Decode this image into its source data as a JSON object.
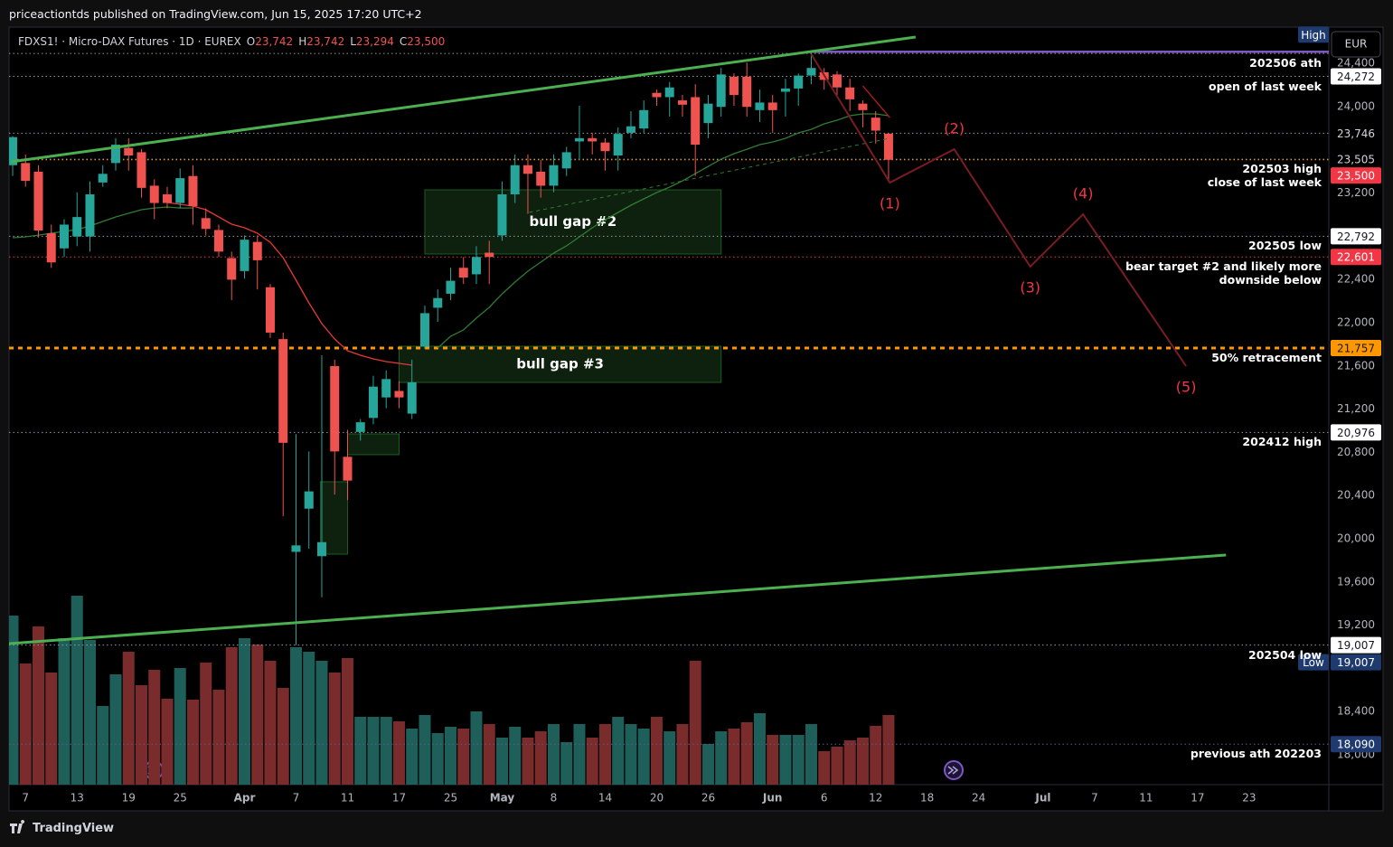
{
  "chart_data": {
    "type": "candlestick",
    "publisher": "priceactiontds published on TradingView.com, Jun 15, 2025 17:20 UTC+2",
    "symbol": "FDXS1! · Micro-DAX Futures · 1D · EUREX",
    "ohlc": [
      {
        "key": "O",
        "value": 23742,
        "label": "23,742"
      },
      {
        "key": "H",
        "value": 23742,
        "label": "23,742"
      },
      {
        "key": "L",
        "value": 23294,
        "label": "23,294"
      },
      {
        "key": "C",
        "value": 23500,
        "label": "23,500"
      }
    ],
    "currency": "EUR",
    "brand": "TradingView",
    "up_color": "#26a69a",
    "down_color": "#ef5350",
    "volume_up_color": "#1e5f5a",
    "volume_down_color": "#7a2b2c",
    "xlim": [
      -0.28,
      102.18
    ],
    "ylim": [
      17715,
      24720
    ],
    "xticks": [
      {
        "value": 1,
        "label": "7"
      },
      {
        "value": 5,
        "label": "13"
      },
      {
        "value": 9,
        "label": "19"
      },
      {
        "value": 13,
        "label": "25"
      },
      {
        "value": 18,
        "label": "Apr"
      },
      {
        "value": 22,
        "label": "7"
      },
      {
        "value": 26,
        "label": "11"
      },
      {
        "value": 30,
        "label": "17"
      },
      {
        "value": 34,
        "label": "25"
      },
      {
        "value": 38,
        "label": "May"
      },
      {
        "value": 42,
        "label": "8"
      },
      {
        "value": 46,
        "label": "14"
      },
      {
        "value": 50,
        "label": "20"
      },
      {
        "value": 54,
        "label": "26"
      },
      {
        "value": 59,
        "label": "Jun"
      },
      {
        "value": 63,
        "label": "6"
      },
      {
        "value": 67,
        "label": "12"
      },
      {
        "value": 71,
        "label": "18"
      },
      {
        "value": 75,
        "label": "24"
      },
      {
        "value": 80,
        "label": "Jul"
      },
      {
        "value": 84,
        "label": "7"
      },
      {
        "value": 88,
        "label": "11"
      },
      {
        "value": 92,
        "label": "17"
      },
      {
        "value": 96,
        "label": "23"
      }
    ],
    "yticks": [
      {
        "value": 24400,
        "label": "24,400"
      },
      {
        "value": 24000,
        "label": "24,000"
      },
      {
        "value": 23200,
        "label": "23,200"
      },
      {
        "value": 22400,
        "label": "22,400"
      },
      {
        "value": 22000,
        "label": "22,000"
      },
      {
        "value": 21600,
        "label": "21,600"
      },
      {
        "value": 21200,
        "label": "21,200"
      },
      {
        "value": 20800,
        "label": "20,800"
      },
      {
        "value": 20400,
        "label": "20,400"
      },
      {
        "value": 20000,
        "label": "20,000"
      },
      {
        "value": 19600,
        "label": "19,600"
      },
      {
        "value": 19200,
        "label": "19,200"
      },
      {
        "value": 18400,
        "label": "18,400"
      },
      {
        "value": 18000,
        "label": "18,000"
      }
    ],
    "open": [
      23450,
      23470,
      23390,
      22820,
      22680,
      22790,
      22790,
      23290,
      23470,
      23610,
      23570,
      23260,
      23180,
      23100,
      23350,
      22960,
      22850,
      22590,
      22470,
      22740,
      22320,
      21840,
      19870,
      20270,
      19830,
      21590,
      20750,
      20980,
      21110,
      21300,
      21360,
      21150,
      21770,
      22130,
      22260,
      22500,
      22440,
      22640,
      22800,
      23180,
      23450,
      23390,
      23260,
      23420,
      23670,
      23700,
      23660,
      23540,
      23750,
      23790,
      24120,
      24080,
      24050,
      24080,
      23840,
      23990,
      24270,
      24270,
      23960,
      24030,
      24130,
      24160,
      24280,
      24310,
      24290,
      24170,
      24020,
      23890,
      23742
    ],
    "high": [
      23720,
      23550,
      23450,
      22900,
      22950,
      23200,
      23300,
      23450,
      23700,
      23700,
      23600,
      23320,
      23250,
      23420,
      23450,
      23050,
      22900,
      22650,
      22800,
      22800,
      22350,
      21900,
      20960,
      20800,
      21690,
      21650,
      21000,
      21100,
      21500,
      21550,
      21450,
      21650,
      22150,
      22300,
      22500,
      22600,
      22700,
      22750,
      23300,
      23550,
      23550,
      23500,
      23550,
      23620,
      24000,
      23750,
      23700,
      23800,
      23950,
      24050,
      24150,
      24220,
      24100,
      24200,
      24100,
      24350,
      24300,
      24400,
      24150,
      24100,
      24250,
      24300,
      24480,
      24350,
      24320,
      24250,
      24050,
      23950,
      23742
    ],
    "low": [
      23350,
      23250,
      22780,
      22500,
      22600,
      22700,
      22650,
      23250,
      23400,
      23400,
      23150,
      22950,
      23050,
      23050,
      22900,
      22800,
      22600,
      22200,
      22400,
      22300,
      21850,
      20200,
      19007,
      19900,
      19450,
      20400,
      20350,
      20900,
      21050,
      21200,
      21200,
      21100,
      21750,
      22000,
      22200,
      22350,
      22350,
      22350,
      22750,
      23100,
      23000,
      23150,
      23200,
      23350,
      23500,
      23550,
      23400,
      23400,
      23700,
      23750,
      24000,
      23900,
      23900,
      23350,
      23700,
      23900,
      24000,
      23900,
      23850,
      23750,
      23900,
      24000,
      24200,
      24150,
      24100,
      23950,
      23800,
      23650,
      23294
    ],
    "close": [
      23710,
      23305,
      22845,
      22550,
      22900,
      22970,
      23180,
      23370,
      23640,
      23540,
      23240,
      23100,
      23100,
      23330,
      23070,
      22860,
      22650,
      22390,
      22760,
      22570,
      21900,
      20880,
      19930,
      20430,
      19960,
      20800,
      20530,
      21070,
      21400,
      21470,
      21300,
      21440,
      22080,
      22220,
      22380,
      22410,
      22600,
      22600,
      23180,
      23450,
      23370,
      23260,
      23450,
      23570,
      23700,
      23670,
      23580,
      23740,
      23810,
      23960,
      24080,
      24170,
      24010,
      23640,
      24020,
      24290,
      24100,
      23990,
      24030,
      23960,
      24160,
      24280,
      24350,
      24240,
      24170,
      24060,
      23960,
      23770,
      23500
    ],
    "volume": [
      187,
      134,
      175,
      124,
      162,
      209,
      160,
      87,
      122,
      147,
      110,
      127,
      95,
      129,
      94,
      135,
      105,
      152,
      162,
      155,
      137,
      107,
      152,
      147,
      137,
      124,
      140,
      75,
      75,
      75,
      70,
      62,
      77,
      57,
      64,
      62,
      81,
      67,
      52,
      64,
      52,
      59,
      67,
      47,
      67,
      52,
      67,
      75,
      67,
      62,
      75,
      59,
      67,
      137,
      45,
      59,
      62,
      69,
      79,
      55,
      55,
      55,
      67,
      37,
      42,
      49,
      52,
      65,
      77
    ],
    "volume_ylim": [
      0,
      837
    ],
    "moving_averages": [
      {
        "color": "#2e7d32",
        "values": [
          22778,
          22787,
          22803,
          22820,
          22837,
          22854,
          22887,
          22929,
          22971,
          23004,
          23038,
          23054,
          23063,
          23054,
          23054,
          null,
          null,
          null,
          null,
          null,
          null,
          null,
          null,
          null,
          null,
          null,
          null,
          null,
          null,
          null,
          null,
          null,
          null,
          21757,
          21866,
          21925,
          22034,
          22134,
          22259,
          22368,
          22469,
          22552,
          22636,
          22703,
          22787,
          22870,
          22946,
          23013,
          23080,
          23138,
          23197,
          23247,
          23305,
          23372,
          23439,
          23506,
          23557,
          23598,
          23640,
          23665,
          23699,
          23749,
          23782,
          23833,
          23866,
          23908,
          23925,
          23925,
          23908
        ]
      },
      {
        "color": "#e53935",
        "values": [
          null,
          null,
          null,
          null,
          null,
          null,
          null,
          null,
          null,
          null,
          null,
          null,
          23105,
          23088,
          23071,
          23038,
          22971,
          22904,
          22870,
          22820,
          22736,
          22594,
          22385,
          22176,
          21983,
          21841,
          21732,
          21690,
          21657,
          21632,
          21615,
          21598,
          null,
          null,
          null,
          null,
          null,
          null,
          null,
          null,
          null,
          null,
          null,
          null,
          null,
          null,
          null,
          null,
          null,
          null,
          null,
          null,
          null,
          null,
          null,
          null,
          null,
          null,
          null,
          null,
          null,
          null,
          null,
          null,
          null,
          null,
          null,
          null,
          null
        ]
      }
    ],
    "levels": [
      {
        "label": "202506 ath",
        "value": 24485,
        "color": "#9598a1",
        "style": "dotted"
      },
      {
        "label": "open of last week",
        "value": 24272,
        "price_label": "24,272",
        "color": "#9598a1",
        "style": "dotted",
        "tag_color": "#ffffff",
        "tag_text": "#131722"
      },
      {
        "value": 23746,
        "price_label": "23,746",
        "color": "#9598a1",
        "style": "dotted",
        "tag_color": "#000000",
        "tag_text": "#d1d4dc"
      },
      {
        "label": "202503 high",
        "value": 23505,
        "price_label": "23,505",
        "color": "#9598a1",
        "style": "dotted",
        "tag_color": "#000000",
        "tag_text": "#d1d4dc"
      },
      {
        "label": "close of last week",
        "value": 23500,
        "price_label": "23,500",
        "color": "#ff9800",
        "style": "dotted",
        "tag_color": "#f23645",
        "tag_text": "#ffffff"
      },
      {
        "label": "202505 low",
        "value": 22792,
        "price_label": "22,792",
        "color": "#9598a1",
        "style": "dotted",
        "tag_color": "#ffffff",
        "tag_text": "#131722"
      },
      {
        "label": "bear target #2 and likely more\ndownside below",
        "value": 22601,
        "price_label": "22,601",
        "color": "#f23645",
        "style": "dotted",
        "tag_color": "#f23645",
        "tag_text": "#ffffff"
      },
      {
        "label": "50% retracement",
        "value": 21757,
        "price_label": "21,757",
        "color": "#ff9800",
        "style": "dashed",
        "tag_color": "#ff9800",
        "tag_text": "#131722"
      },
      {
        "label": "202412 high",
        "value": 20976,
        "price_label": "20,976",
        "color": "#9598a1",
        "style": "dotted",
        "tag_color": "#ffffff",
        "tag_text": "#131722"
      },
      {
        "label": "202504 low",
        "value": 19007,
        "price_label": "19,007",
        "color": "#9598a1",
        "style": "dotted",
        "tag_color": "#ffffff",
        "tag_text": "#131722"
      },
      {
        "label": "previous ath 202203",
        "value": 18090,
        "price_label": "18,090",
        "color": "#5c5a8a",
        "style": "dotted",
        "tag_color": "#1e3a6e",
        "tag_text": "#ffffff"
      }
    ],
    "markers": [
      {
        "label": "High",
        "value": 24500,
        "color": "#7e57c2",
        "x_start": 62
      },
      {
        "label": "Low",
        "value": 19007,
        "price_label": "19,007"
      }
    ],
    "marker_color": "#1e3a6e",
    "zones": [
      {
        "label": "bull gap #2",
        "x": [
          32.0,
          55.0
        ],
        "y": [
          22628,
          23222
        ]
      },
      {
        "label": "bull gap #3",
        "x": [
          30.0,
          55.0
        ],
        "y": [
          21439,
          21774
        ]
      },
      {
        "x": [
          26.0,
          30.0
        ],
        "y": [
          20770,
          20962
        ]
      },
      {
        "x": [
          23.9,
          26.0
        ],
        "y": [
          19849,
          20519
        ]
      }
    ],
    "trendlines": [
      {
        "x": [
          -0.14,
          70.1
        ],
        "y": [
          23481,
          24636
        ],
        "color": "#4caf50",
        "style": "solid"
      },
      {
        "x": [
          -0.28,
          94.2
        ],
        "y": [
          19021,
          19841
        ],
        "color": "#4caf50",
        "style": "solid"
      },
      {
        "x": [
          40.1,
          68.1
        ],
        "y": [
          23013,
          23699
        ],
        "color": "#2e7d32",
        "style": "dashed"
      },
      {
        "x": [
          66.0,
          68.1
        ],
        "y": [
          24184,
          23891
        ],
        "color": "#b71c1c",
        "style": "thin"
      }
    ],
    "wave": {
      "color": "#7a1c22",
      "label_color": "#f23645",
      "x": [
        62.0,
        68.1,
        73.1,
        79.0,
        83.1,
        91.1
      ],
      "y": [
        24477,
        23289,
        23598,
        22511,
        22996,
        21590
      ],
      "labels": [
        null,
        "(1)",
        "(2)",
        "(3)",
        "(4)",
        "(5)"
      ]
    }
  }
}
